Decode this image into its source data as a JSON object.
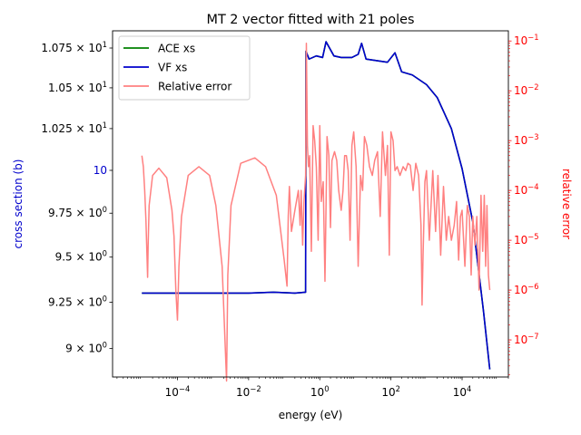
{
  "chart_data": {
    "type": "line",
    "title": "MT 2 vector fitted with 21 poles",
    "xlabel": "energy (eV)",
    "ylabel_left": "cross section (b)",
    "ylabel_right": "relative error",
    "x_scale": "log",
    "y_left_scale": "log",
    "y_right_scale": "log",
    "xlim": [
      1.5e-06,
      200000.0
    ],
    "ylim_left": [
      8.85,
      10.86
    ],
    "ylim_right": [
      1.8e-08,
      0.16
    ],
    "x_ticks": [
      {
        "value": 0.0001,
        "base": "10",
        "exp": "−4"
      },
      {
        "value": 0.01,
        "base": "10",
        "exp": "−2"
      },
      {
        "value": 1,
        "base": "10",
        "exp": "0"
      },
      {
        "value": 100,
        "base": "10",
        "exp": "2"
      },
      {
        "value": 10000,
        "base": "10",
        "exp": "4"
      }
    ],
    "y_left_ticks": [
      {
        "value": 10.75,
        "label": "1.075 × 10",
        "exp": "1"
      },
      {
        "value": 10.5,
        "label": "1.05 × 10",
        "exp": "1"
      },
      {
        "value": 10.25,
        "label": "1.025 × 10",
        "exp": "1"
      },
      {
        "value": 10,
        "label": "10",
        "exp": "1",
        "plain": true
      },
      {
        "value": 9.75,
        "label": "9.75 × 10",
        "exp": "0"
      },
      {
        "value": 9.5,
        "label": "9.5 × 10",
        "exp": "0"
      },
      {
        "value": 9.25,
        "label": "9.25 × 10",
        "exp": "0"
      },
      {
        "value": 9.0,
        "label": "9 × 10",
        "exp": "0"
      }
    ],
    "y_right_ticks": [
      {
        "value": 1e-07,
        "base": "10",
        "exp": "−7"
      },
      {
        "value": 1e-06,
        "base": "10",
        "exp": "−6"
      },
      {
        "value": 1e-05,
        "base": "10",
        "exp": "−5"
      },
      {
        "value": 0.0001,
        "base": "10",
        "exp": "−4"
      },
      {
        "value": 0.001,
        "base": "10",
        "exp": "−3"
      },
      {
        "value": 0.01,
        "base": "10",
        "exp": "−2"
      },
      {
        "value": 0.1,
        "base": "10",
        "exp": "−1"
      }
    ],
    "legend_position": "top-left",
    "grid": false,
    "series": [
      {
        "name": "ACE xs",
        "axis": "left",
        "color": "#008000",
        "x": [
          1e-05,
          0.0001,
          0.001,
          0.01,
          0.05,
          0.2,
          0.4,
          0.41,
          0.5,
          0.8,
          1.2,
          1.5,
          2.5,
          4,
          8,
          12,
          15,
          20,
          40,
          80,
          130,
          200,
          400,
          1000,
          2000,
          5000,
          10000,
          20000,
          40000,
          60000
        ],
        "y": [
          9.3,
          9.3,
          9.3,
          9.3,
          9.305,
          9.3,
          9.305,
          10.73,
          10.68,
          10.7,
          10.69,
          10.79,
          10.7,
          10.69,
          10.69,
          10.71,
          10.78,
          10.68,
          10.67,
          10.66,
          10.72,
          10.6,
          10.58,
          10.52,
          10.44,
          10.25,
          10.01,
          9.7,
          9.2,
          8.89
        ]
      },
      {
        "name": "VF xs",
        "axis": "left",
        "color": "#0000cc",
        "x": [
          1e-05,
          0.0001,
          0.001,
          0.01,
          0.05,
          0.2,
          0.4,
          0.41,
          0.5,
          0.8,
          1.2,
          1.5,
          2.5,
          4,
          8,
          12,
          15,
          20,
          40,
          80,
          130,
          200,
          400,
          1000,
          2000,
          5000,
          10000,
          20000,
          40000,
          60000
        ],
        "y": [
          9.3,
          9.3,
          9.3,
          9.3,
          9.305,
          9.3,
          9.305,
          10.73,
          10.68,
          10.7,
          10.69,
          10.79,
          10.7,
          10.69,
          10.69,
          10.71,
          10.78,
          10.68,
          10.67,
          10.66,
          10.72,
          10.6,
          10.58,
          10.52,
          10.44,
          10.25,
          10.01,
          9.7,
          9.2,
          8.89
        ]
      },
      {
        "name": "Relative error",
        "axis": "right",
        "color": "#ff8080",
        "x": [
          1e-05,
          1.1e-05,
          1.2e-05,
          1.3e-05,
          1.38e-05,
          1.45e-05,
          1.5e-05,
          1.6e-05,
          2e-05,
          3e-05,
          5e-05,
          7e-05,
          8e-05,
          9e-05,
          0.0001,
          0.00011,
          0.00013,
          0.0002,
          0.0004,
          0.0008,
          0.0012,
          0.0018,
          0.0024,
          0.0026,
          0.0032,
          0.006,
          0.015,
          0.03,
          0.06,
          0.1,
          0.12,
          0.13,
          0.14,
          0.16,
          0.2,
          0.25,
          0.28,
          0.3,
          0.33,
          0.36,
          0.4,
          0.42,
          0.45,
          0.48,
          0.52,
          0.58,
          0.65,
          0.72,
          0.8,
          0.9,
          1.0,
          1.1,
          1.25,
          1.4,
          1.6,
          1.8,
          2.0,
          2.2,
          2.6,
          3.0,
          3.4,
          4.0,
          4.5,
          5.0,
          5.6,
          6.3,
          7.1,
          8.0,
          9.0,
          10.5,
          12,
          14,
          16,
          18,
          21,
          25,
          30,
          35,
          42,
          50,
          58,
          70,
          80,
          90,
          100,
          115,
          130,
          150,
          180,
          220,
          260,
          300,
          350,
          420,
          500,
          600,
          700,
          750,
          800,
          900,
          1000,
          1200,
          1500,
          1800,
          2100,
          2500,
          3000,
          3600,
          4200,
          5000,
          6000,
          7000,
          8000,
          9000,
          10000,
          12000,
          14000,
          16000,
          18000,
          20000,
          23000,
          26000,
          30000,
          34000,
          38000,
          42000,
          46000,
          50000,
          55000,
          60000
        ],
        "y": [
          0.0005,
          0.0003,
          0.0001,
          2.5e-05,
          6e-06,
          1.8e-06,
          8e-06,
          5e-05,
          0.0002,
          0.00028,
          0.00018,
          4e-05,
          1.2e-05,
          1e-06,
          2.5e-07,
          3e-06,
          3e-05,
          0.0002,
          0.0003,
          0.0002,
          5e-05,
          3e-06,
          1.5e-08,
          2e-06,
          5e-05,
          0.00035,
          0.00045,
          0.0003,
          8e-05,
          4e-06,
          1.2e-06,
          3e-05,
          0.00012,
          1.5e-05,
          4e-05,
          0.0001,
          2e-05,
          0.0001,
          8e-06,
          6e-05,
          0.0002,
          0.09,
          0.0008,
          0.0003,
          0.0005,
          6e-06,
          0.002,
          0.001,
          0.0003,
          1e-05,
          0.002,
          6e-05,
          0.00015,
          1.5e-06,
          0.0012,
          0.0005,
          1.8e-05,
          0.0004,
          0.0006,
          0.0004,
          0.0001,
          4e-05,
          0.0001,
          0.0005,
          0.0005,
          0.00025,
          1e-05,
          0.0008,
          0.0015,
          0.0003,
          3e-06,
          0.0002,
          0.0001,
          0.0012,
          0.0008,
          0.0003,
          0.0002,
          0.0004,
          0.0006,
          3e-05,
          0.0015,
          0.0002,
          0.0008,
          5e-06,
          0.0015,
          0.001,
          0.00025,
          0.0003,
          0.0002,
          0.0003,
          0.00025,
          0.00035,
          0.00032,
          0.0001,
          0.00035,
          0.0002,
          2e-05,
          5e-07,
          5e-06,
          0.00015,
          0.00025,
          1e-05,
          0.00025,
          1.5e-05,
          0.0002,
          5e-06,
          0.00012,
          1e-05,
          3e-05,
          1e-05,
          2e-05,
          6e-05,
          4e-06,
          3e-05,
          4e-05,
          3e-06,
          5e-05,
          3e-05,
          2e-06,
          3e-05,
          8e-06,
          3e-05,
          1e-06,
          8e-05,
          6e-06,
          8e-05,
          3e-06,
          5e-05,
          2e-06,
          1e-06
        ]
      }
    ]
  }
}
